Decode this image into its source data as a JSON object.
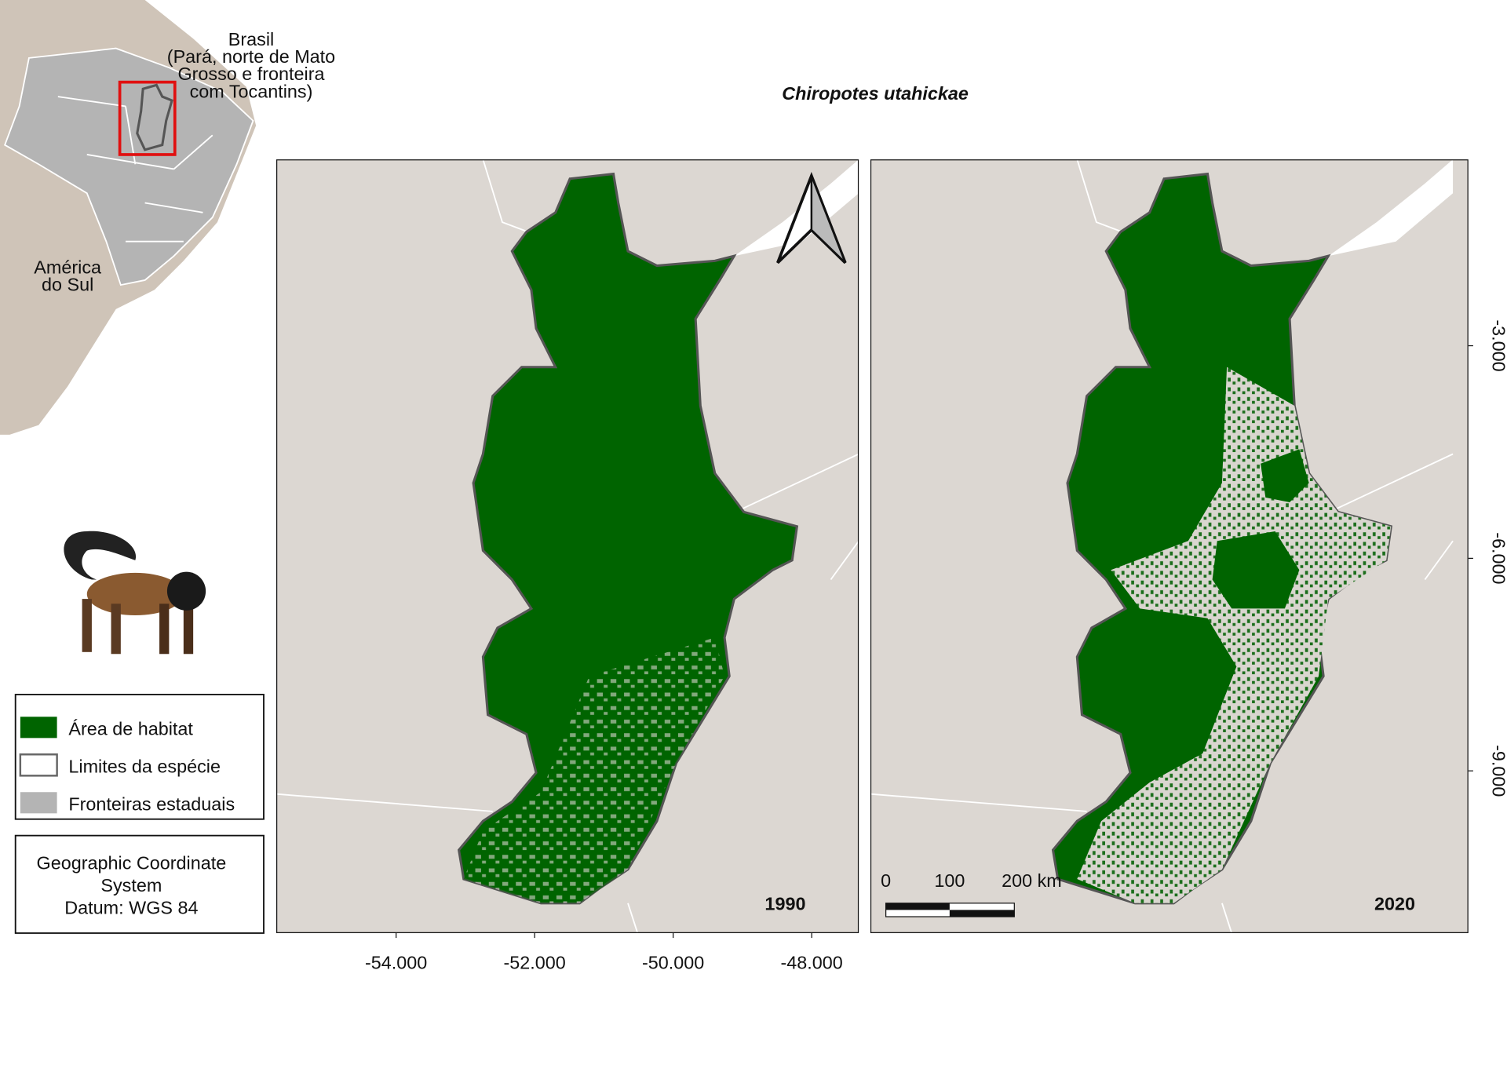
{
  "title": "Chiropotes utahickae",
  "inset": {
    "country": "Brasil",
    "country_detail": [
      "(Pará, norte de Mato",
      "Grosso e fronteira",
      "com Tocantins)"
    ],
    "continent": [
      "América",
      "do Sul"
    ]
  },
  "legend": {
    "items": [
      {
        "label": "Área de habitat",
        "color": "#006400"
      },
      {
        "label": "Limites da espécie",
        "color": "#ffffff"
      },
      {
        "label": "Fronteiras estaduais",
        "color": "#b4b4b4"
      }
    ]
  },
  "crs": [
    "Geographic Coordinate",
    "System",
    "Datum: WGS 84"
  ],
  "maps": [
    {
      "year": "1990"
    },
    {
      "year": "2020"
    }
  ],
  "xaxis": {
    "xlim": [
      -55.73,
      -47.32
    ],
    "ticks": [
      {
        "value": -54,
        "label": "-54.000"
      },
      {
        "value": -52,
        "label": "-52.000"
      },
      {
        "value": -50,
        "label": "-50.000"
      },
      {
        "value": -48,
        "label": "-48.000"
      }
    ]
  },
  "yaxis": {
    "ylim": [
      -0.37,
      -11.29
    ],
    "ticks": [
      {
        "value": -3,
        "label": "-3.000"
      },
      {
        "value": -6,
        "label": "-6.000"
      },
      {
        "value": -9,
        "label": "-9.000"
      }
    ]
  },
  "scale_bar": {
    "labels": [
      "0",
      "100",
      "200 km"
    ]
  }
}
